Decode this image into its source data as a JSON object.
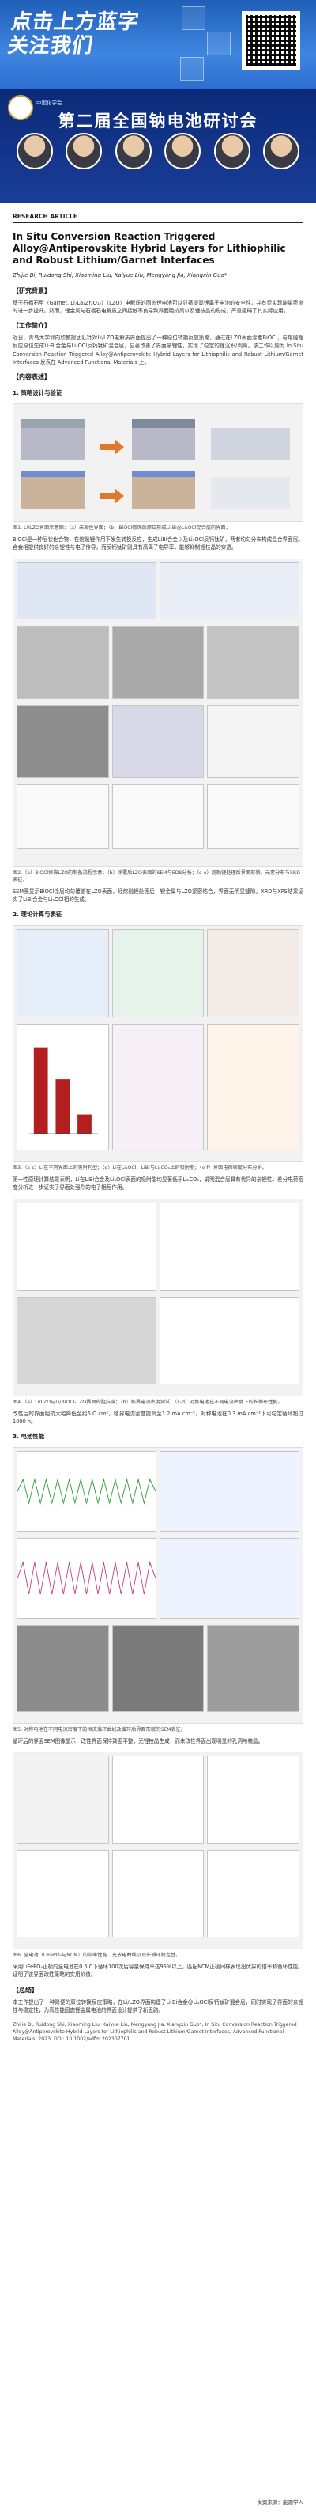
{
  "banner": {
    "line1": "点击上方蓝字",
    "line2": "关注我们"
  },
  "conference": {
    "title": "第二届全国钠电池研讨会",
    "organizer": "中国化学会"
  },
  "article": {
    "label": "RESEARCH ARTICLE",
    "title": "In Situ Conversion Reaction Triggered Alloy@Antiperovskite Hybrid Layers for Lithiophilic and Robust Lithium/Garnet Interfaces",
    "authors": "Zhijie Bi, Ruidong Shi, Xiaoming Liu, Kaiyue Liu, Mengyang Jia, Xiangxin Guo*"
  },
  "sections": {
    "background": {
      "heading": "【研究背景】",
      "text": "基于石榴石型（Garnet, Li₇La₃Zr₂O₁₂）（LZO）电解质的固态锂电池可以显著提高锂离子电池的安全性，并有望实现能量密度的进一步提升。然而，锂金属与石榴石电解质之间接触不良导致界面阻抗高以及锂枝晶的形成，严重阻碍了其实际应用。"
    },
    "work": {
      "heading": "【工作简介】",
      "text": "近日，青岛大学郭向欣教授团队针对Li/LZO电解质界面提出了一种原位转换反应策略，通过在LZO表面涂覆BiOCl，与熔融锂反应原位生成Li-Bi合金与Li₃OCl反钙钛矿混合层，显著改善了界面亲锂性，实现了稳定的锂沉积/剥离。该工作以题为 In Situ Conversion Reaction Triggered Alloy@Antiperovskite Hybrid Layers for Lithiophilic and Robust Lithium/Garnet Interfaces 发表在 Advanced Functional Materials 上。"
    },
    "content": {
      "heading": "【内容表述】",
      "sub1": "1. 策略设计与验证",
      "fig1_cap": "图1. Li/LZO界面示意图：（a）未改性界面；（b）BiOCl修饰后原位形成Li-Bi@Li₃OCl混合层的界面。",
      "p1": "BiOCl是一种层状化合物，在熔融锂作用下发生转换反应，生成LiBi合金以及Li₃OCl反钙钛矿，两者均匀分布构成混合界面层。合金相提供良好的亲锂性与电子传导，而反钙钛矿则具有高离子电导率，能够抑制锂枝晶的穿透。",
      "fig2_cap": "图2.（a）BiOCl修饰LZO的制备流程示意；（b）涂覆后LZO表面的SEM与EDS分析；（c-e）熔融锂处理后界面形貌、元素分布与XRD表征。",
      "p2": "SEM图显示BiOCl涂层均匀覆盖在LZO表面，经熔融锂处理后，锂金属与LZO紧密结合，界面无明显缝隙。XRD与XPS结果证实了LiBi合金与Li₃OCl相的生成。",
      "sub2": "2. 理论计算与表征",
      "fig3_cap": "图3.（a-c）Li在不同界面上的吸附构型；（d）Li在Li₃OCl、LiBi与Li₂CO₃上的吸附能；（e-f）界面电荷密度分布分析。",
      "p3": "第一性原理计算结果表明，Li在LiBi合金及Li₃OCl表面的吸附能均显著低于Li₂CO₃，说明混合层具有优异的亲锂性。差分电荷密度分析进一步证实了界面处强烈的电子相互作用。",
      "fig4_cap": "图4.（a）Li/LZO与Li/BiOCl-LZO界面的阻抗谱；（b）临界电流密度测试；（c-d）对称电池在不同电流密度下的长循环性能。",
      "p4": "改性后的界面阻抗大幅降低至约6 Ω cm²，临界电流密度提高至1.2 mA cm⁻²，对称电池在0.3 mA cm⁻²下可稳定循环超过1000 h。",
      "sub3": "3. 电池性能",
      "fig5_cap": "图5. 对称电池在不同电流密度下的恒流循环曲线及循环后界面形貌的SEM表征。",
      "p5": "循环后的界面SEM图像显示，改性界面保持致密平整，无锂枝晶生成；而未改性界面出现明显的孔洞与枝晶。",
      "fig6_cap": "图6. 全电池（LiFePO₄与NCM）的倍率性能、充放电曲线以及长循环稳定性。",
      "p6": "采用LiFePO₄正极的全电池在0.5 C下循环100次后容量保持率达95%以上，匹配NCM正极同样表现出优异的倍率和循环性能，证明了该界面改性策略的实用价值。"
    },
    "summary": {
      "heading": "【总结】",
      "text": "本工作提出了一种简便的原位转换反应策略，在Li/LZO界面构建了Li-Bi合金@Li₃OCl反钙钛矿混合层，同时实现了界面的亲锂性与稳定性，为高性能固态锂金属电池的界面设计提供了新思路。"
    }
  },
  "citation": "Zhijie Bi, Ruidong Shi, Xiaoming Liu, Kaiyue Liu, Mengyang Jia, Xiangxin Guo*, In Situ Conversion Reaction Triggered Alloy@Antiperovskite Hybrid Layers for Lithiophilic and Robust Lithium/Garnet Interfaces, Advanced Functional Materials, 2023, DOI: 10.1002/adfm.202307701",
  "editor": "文案来源：能源学人",
  "colors": {
    "banner": "#2d6fd0",
    "conference": "#0b2a78",
    "accent": "#c8a23c"
  }
}
